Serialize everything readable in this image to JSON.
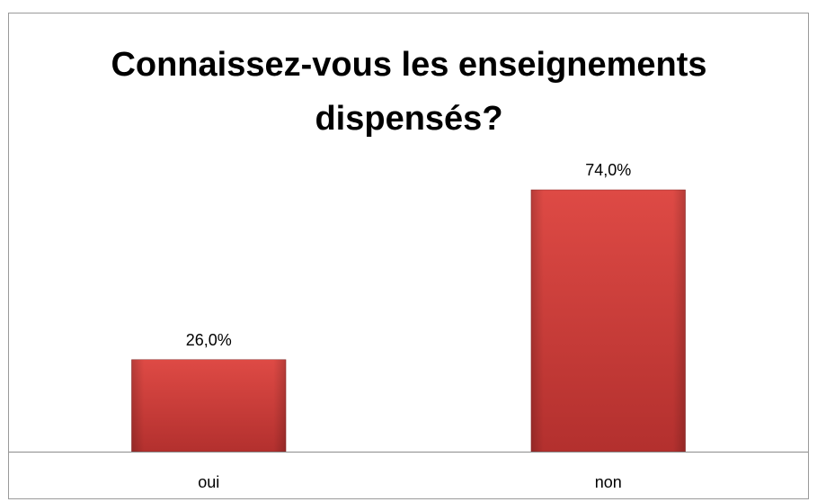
{
  "chart_data": {
    "type": "bar",
    "title": "Connaissez-vous les enseignements dispensés?",
    "categories": [
      "oui",
      "non"
    ],
    "values": [
      26,
      74
    ],
    "value_labels": [
      "26,0%",
      "74,0%"
    ],
    "color": "#d2403c"
  }
}
